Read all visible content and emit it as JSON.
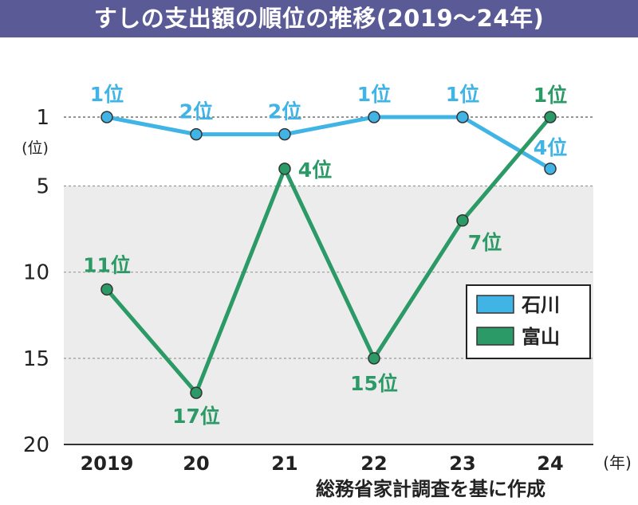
{
  "chart_data": {
    "type": "line",
    "title": "すしの支出額の順位の推移(2019〜24年)",
    "categories": [
      "2019",
      "20",
      "21",
      "22",
      "23",
      "24"
    ],
    "x_unit": "(年)",
    "y_unit": "(位)",
    "y_ticks": [
      "1",
      "5",
      "10",
      "15",
      "20"
    ],
    "y_tick_values": [
      1,
      5,
      10,
      15,
      20
    ],
    "ylim": [
      1,
      20
    ],
    "y_inverted": true,
    "shaded_band": [
      5,
      20
    ],
    "series": [
      {
        "name": "石川",
        "color": "#41b4e6",
        "values": [
          1,
          2,
          2,
          1,
          1,
          4
        ],
        "labels": [
          "1位",
          "2位",
          "2位",
          "1位",
          "1位",
          "4位"
        ]
      },
      {
        "name": "富山",
        "color": "#2c9a66",
        "values": [
          11,
          17,
          4,
          15,
          7,
          1
        ],
        "labels": [
          "11位",
          "17位",
          "4位",
          "15位",
          "7位",
          "1位"
        ]
      }
    ],
    "legend": [
      "石川",
      "富山"
    ],
    "legend_position": "right",
    "source": "総務省家計調査を基に作成"
  }
}
